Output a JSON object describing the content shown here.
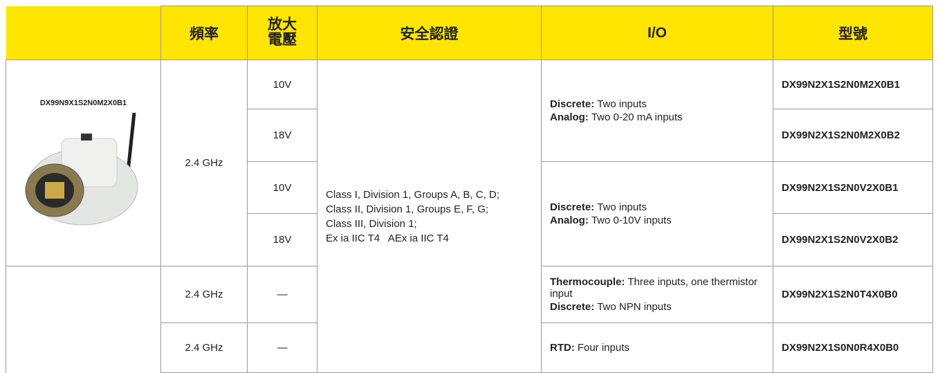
{
  "header": {
    "frequency": "頻率",
    "voltage": "放大電壓",
    "certification": "安全認證",
    "io": "I/O",
    "model": "型號"
  },
  "product": {
    "caption": "DX99N9X1S2N0M2X0B1"
  },
  "frequency": [
    "2.4 GHz",
    "2.4 GHz",
    "2.4 GHz"
  ],
  "voltage": [
    "10V",
    "18V",
    "10V",
    "18V",
    "—",
    "—"
  ],
  "certification": [
    "Class I, Division 1, Groups A, B, C, D;",
    "Class II, Division 1, Groups E, F, G;",
    "Class III, Division 1;",
    "Ex ia IIC T4   AEx ia IIC T4"
  ],
  "io": [
    [
      {
        "label": "Discrete:",
        "text": "Two inputs"
      },
      {
        "label": "Analog:",
        "text": "Two 0-20 mA inputs"
      }
    ],
    [
      {
        "label": "Discrete:",
        "text": "Two inputs"
      },
      {
        "label": "Analog:",
        "text": "Two 0-10V inputs"
      }
    ],
    [
      {
        "label": "Thermocouple:",
        "text": "Three inputs, one thermistor input"
      },
      {
        "label": "Discrete:",
        "text": "Two NPN inputs"
      }
    ],
    [
      {
        "label": "RTD:",
        "text": "Four inputs"
      }
    ]
  ],
  "models": [
    "DX99N2X1S2N0M2X0B1",
    "DX99N2X1S2N0M2X0B2",
    "DX99N2X1S2N0V2X0B1",
    "DX99N2X1S2N0V2X0B2",
    "DX99N2X1S2N0T4X0B0",
    "DX99N2X1S0N0R4X0B0"
  ]
}
